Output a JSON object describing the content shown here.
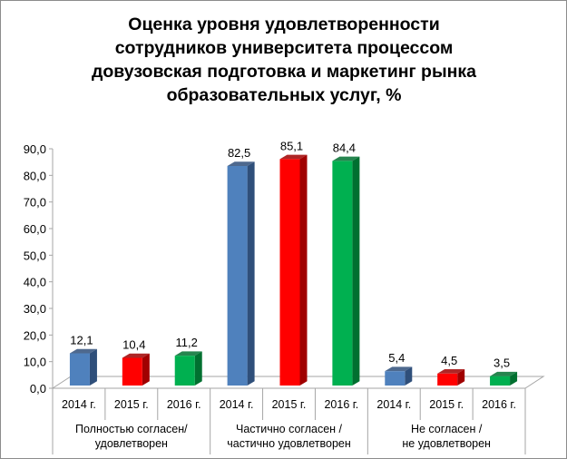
{
  "chart_data": {
    "type": "bar",
    "title_lines": [
      "Оценка уровня удовлетворенности",
      "сотрудников университета процессом",
      "довузовская подготовка и маркетинг рынка",
      "образовательных услуг, %"
    ],
    "ylim": [
      0,
      90
    ],
    "yticks": [
      "0,0",
      "10,0",
      "20,0",
      "30,0",
      "40,0",
      "50,0",
      "60,0",
      "70,0",
      "80,0",
      "90,0"
    ],
    "groups": [
      {
        "label_lines": [
          "Полностью согласен/",
          "удовлетворен"
        ]
      },
      {
        "label_lines": [
          "Частично согласен /",
          "частично удовлетворен"
        ]
      },
      {
        "label_lines": [
          "Не согласен /",
          "не удовлетворен"
        ]
      }
    ],
    "years": [
      "2014 г.",
      "2015 г.",
      "2016 г."
    ],
    "series": [
      {
        "name": "2014 г.",
        "color": "#4f81bd",
        "side": "#2f4f7a",
        "values": [
          12.1,
          82.5,
          5.4
        ],
        "labels": [
          "12,1",
          "82,5",
          "5,4"
        ]
      },
      {
        "name": "2015 г.",
        "color": "#ff0000",
        "side": "#a00000",
        "values": [
          10.4,
          85.1,
          4.5
        ],
        "labels": [
          "10,4",
          "85,1",
          "4,5"
        ]
      },
      {
        "name": "2016 г.",
        "color": "#00b050",
        "side": "#007030",
        "values": [
          11.2,
          84.4,
          3.5
        ],
        "labels": [
          "11,2",
          "84,4",
          "3,5"
        ]
      }
    ],
    "grid": false,
    "legend": "none"
  }
}
